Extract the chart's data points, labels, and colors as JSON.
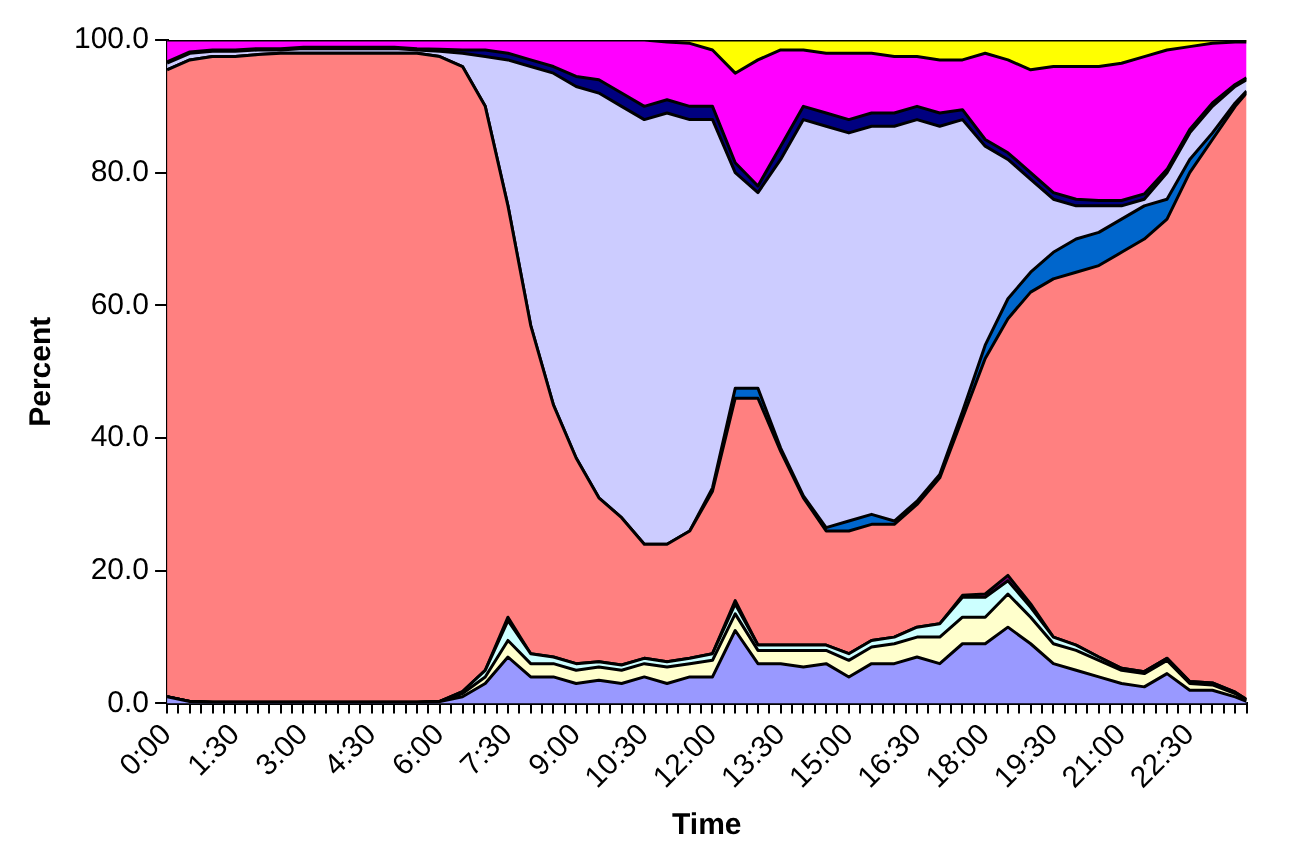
{
  "chart_data": {
    "type": "area",
    "stacked": true,
    "xlabel": "Time",
    "ylabel": "Percent",
    "grid": false,
    "legend": false,
    "marker": "none",
    "x": [
      0,
      0.5,
      1,
      1.5,
      2,
      2.5,
      3,
      3.5,
      4,
      4.5,
      5,
      5.5,
      6,
      6.5,
      7,
      7.5,
      8,
      8.5,
      9,
      9.5,
      10,
      10.5,
      11,
      11.5,
      12,
      12.5,
      13,
      13.5,
      14,
      14.5,
      15,
      15.5,
      16,
      16.5,
      17,
      17.5,
      18,
      18.5,
      19,
      19.5,
      20,
      20.5,
      21,
      21.5,
      22,
      22.5,
      23,
      23.5,
      23.75
    ],
    "xlim": [
      0,
      23.75
    ],
    "xticks": [
      {
        "value": 0,
        "label": "0:00"
      },
      {
        "value": 0.25,
        "label": null
      },
      {
        "value": 0.5,
        "label": null
      },
      {
        "value": 0.75,
        "label": null
      },
      {
        "value": 1,
        "label": null
      },
      {
        "value": 1.25,
        "label": null
      },
      {
        "value": 1.5,
        "label": "1:30"
      },
      {
        "value": 1.75,
        "label": null
      },
      {
        "value": 2,
        "label": null
      },
      {
        "value": 2.25,
        "label": null
      },
      {
        "value": 2.5,
        "label": null
      },
      {
        "value": 2.75,
        "label": null
      },
      {
        "value": 3,
        "label": "3:00"
      },
      {
        "value": 3.25,
        "label": null
      },
      {
        "value": 3.5,
        "label": null
      },
      {
        "value": 3.75,
        "label": null
      },
      {
        "value": 4,
        "label": null
      },
      {
        "value": 4.25,
        "label": null
      },
      {
        "value": 4.5,
        "label": "4:30"
      },
      {
        "value": 4.75,
        "label": null
      },
      {
        "value": 5,
        "label": null
      },
      {
        "value": 5.25,
        "label": null
      },
      {
        "value": 5.5,
        "label": null
      },
      {
        "value": 5.75,
        "label": null
      },
      {
        "value": 6,
        "label": "6:00"
      },
      {
        "value": 6.25,
        "label": null
      },
      {
        "value": 6.5,
        "label": null
      },
      {
        "value": 6.75,
        "label": null
      },
      {
        "value": 7,
        "label": null
      },
      {
        "value": 7.25,
        "label": null
      },
      {
        "value": 7.5,
        "label": "7:30"
      },
      {
        "value": 7.75,
        "label": null
      },
      {
        "value": 8,
        "label": null
      },
      {
        "value": 8.25,
        "label": null
      },
      {
        "value": 8.5,
        "label": null
      },
      {
        "value": 8.75,
        "label": null
      },
      {
        "value": 9,
        "label": "9:00"
      },
      {
        "value": 9.25,
        "label": null
      },
      {
        "value": 9.5,
        "label": null
      },
      {
        "value": 9.75,
        "label": null
      },
      {
        "value": 10,
        "label": null
      },
      {
        "value": 10.25,
        "label": null
      },
      {
        "value": 10.5,
        "label": "10:30"
      },
      {
        "value": 10.75,
        "label": null
      },
      {
        "value": 11,
        "label": null
      },
      {
        "value": 11.25,
        "label": null
      },
      {
        "value": 11.5,
        "label": null
      },
      {
        "value": 11.75,
        "label": null
      },
      {
        "value": 12,
        "label": "12:00"
      },
      {
        "value": 12.25,
        "label": null
      },
      {
        "value": 12.5,
        "label": null
      },
      {
        "value": 12.75,
        "label": null
      },
      {
        "value": 13,
        "label": null
      },
      {
        "value": 13.25,
        "label": null
      },
      {
        "value": 13.5,
        "label": "13:30"
      },
      {
        "value": 13.75,
        "label": null
      },
      {
        "value": 14,
        "label": null
      },
      {
        "value": 14.25,
        "label": null
      },
      {
        "value": 14.5,
        "label": null
      },
      {
        "value": 14.75,
        "label": null
      },
      {
        "value": 15,
        "label": "15:00"
      },
      {
        "value": 15.25,
        "label": null
      },
      {
        "value": 15.5,
        "label": null
      },
      {
        "value": 15.75,
        "label": null
      },
      {
        "value": 16,
        "label": null
      },
      {
        "value": 16.25,
        "label": null
      },
      {
        "value": 16.5,
        "label": "16:30"
      },
      {
        "value": 16.75,
        "label": null
      },
      {
        "value": 17,
        "label": null
      },
      {
        "value": 17.25,
        "label": null
      },
      {
        "value": 17.5,
        "label": null
      },
      {
        "value": 17.75,
        "label": null
      },
      {
        "value": 18,
        "label": "18:00"
      },
      {
        "value": 18.25,
        "label": null
      },
      {
        "value": 18.5,
        "label": null
      },
      {
        "value": 18.75,
        "label": null
      },
      {
        "value": 19,
        "label": null
      },
      {
        "value": 19.25,
        "label": null
      },
      {
        "value": 19.5,
        "label": "19:30"
      },
      {
        "value": 19.75,
        "label": null
      },
      {
        "value": 20,
        "label": null
      },
      {
        "value": 20.25,
        "label": null
      },
      {
        "value": 20.5,
        "label": null
      },
      {
        "value": 20.75,
        "label": null
      },
      {
        "value": 21,
        "label": "21:00"
      },
      {
        "value": 21.25,
        "label": null
      },
      {
        "value": 21.5,
        "label": null
      },
      {
        "value": 21.75,
        "label": null
      },
      {
        "value": 22,
        "label": null
      },
      {
        "value": 22.25,
        "label": null
      },
      {
        "value": 22.5,
        "label": "22:30"
      },
      {
        "value": 22.75,
        "label": null
      },
      {
        "value": 23,
        "label": null
      },
      {
        "value": 23.25,
        "label": null
      },
      {
        "value": 23.5,
        "label": null
      },
      {
        "value": 23.75,
        "label": null
      }
    ],
    "ylim": [
      0,
      100
    ],
    "yticks": [
      {
        "value": 0,
        "label": "0.0"
      },
      {
        "value": 20,
        "label": "20.0"
      },
      {
        "value": 40,
        "label": "40.0"
      },
      {
        "value": 60,
        "label": "60.0"
      },
      {
        "value": 80,
        "label": "80.0"
      },
      {
        "value": 100,
        "label": "100.0"
      }
    ],
    "series": [
      {
        "color": "#9999ff",
        "values": [
          1,
          0.3,
          0.2,
          0.2,
          0.2,
          0.2,
          0.2,
          0.2,
          0.2,
          0.2,
          0.2,
          0.2,
          0.3,
          1,
          3,
          7,
          4,
          4,
          3,
          3.5,
          3,
          4,
          3,
          4,
          4,
          11,
          6,
          6,
          5.5,
          6,
          4,
          6,
          6,
          7,
          6,
          9,
          9,
          11.5,
          9,
          6,
          5,
          4,
          3,
          2.5,
          4.5,
          2,
          2,
          1,
          0.3
        ]
      },
      {
        "color": "#ffffcc",
        "values": [
          0,
          0,
          0,
          0,
          0,
          0,
          0,
          0,
          0,
          0,
          0,
          0,
          0,
          0.5,
          1,
          2.5,
          2,
          2,
          2,
          2,
          2,
          2,
          2.5,
          2,
          2.5,
          2.5,
          2,
          2,
          2.5,
          2,
          2.5,
          2.5,
          3,
          3,
          4,
          4,
          4,
          5,
          4,
          3,
          3,
          2.5,
          2,
          2,
          2,
          1,
          0.8,
          0.5,
          0.2
        ]
      },
      {
        "color": "#ccffff",
        "values": [
          0,
          0,
          0,
          0,
          0,
          0,
          0,
          0,
          0,
          0,
          0,
          0,
          0,
          0.3,
          1,
          3,
          1.5,
          1,
          1,
          0.8,
          0.8,
          0.8,
          0.8,
          0.8,
          1,
          1.5,
          0.8,
          0.8,
          0.8,
          0.8,
          1,
          1,
          1,
          1.5,
          2,
          3,
          3,
          2,
          1.5,
          1,
          0.8,
          0.5,
          0.3,
          0.3,
          0.3,
          0.3,
          0.3,
          0.2,
          0.1
        ]
      },
      {
        "color": "#800080",
        "values": [
          0,
          0,
          0,
          0,
          0,
          0,
          0,
          0,
          0,
          0,
          0,
          0,
          0,
          0,
          0,
          0.5,
          0,
          0,
          0,
          0,
          0,
          0,
          0,
          0,
          0,
          0.5,
          0,
          0,
          0,
          0,
          0,
          0,
          0,
          0,
          0,
          0.3,
          0.5,
          0.8,
          0.5,
          0,
          0,
          0,
          0,
          0,
          0,
          0,
          0,
          0,
          0
        ]
      },
      {
        "color": "#ff8080",
        "values": [
          94.5,
          96.7,
          97.3,
          97.3,
          97.6,
          97.8,
          97.8,
          97.8,
          97.8,
          97.8,
          97.8,
          97.8,
          97.2,
          94.2,
          85,
          62,
          49.5,
          38,
          31,
          24.7,
          22.2,
          17.2,
          17.7,
          19.2,
          24.5,
          30.5,
          37.2,
          29.2,
          22.2,
          17.2,
          18.5,
          17.5,
          17,
          18.5,
          22,
          26.7,
          35.5,
          38.7,
          47,
          54,
          56.2,
          59,
          62.7,
          65.2,
          66.2,
          76.7,
          81.9,
          88.3,
          91.4
        ]
      },
      {
        "color": "#0066cc",
        "values": [
          0,
          0,
          0,
          0,
          0,
          0,
          0,
          0,
          0,
          0,
          0,
          0,
          0,
          0,
          0,
          0,
          0,
          0,
          0,
          0,
          0,
          0,
          0,
          0,
          0.5,
          1.5,
          1.5,
          0.5,
          0.3,
          0.5,
          1.5,
          1.5,
          0.5,
          0.5,
          0.5,
          1,
          2,
          3,
          3,
          4,
          5,
          5,
          5,
          5,
          3,
          2,
          1,
          0.5,
          0.3
        ]
      },
      {
        "color": "#ccccff",
        "values": [
          1,
          1,
          0.8,
          0.8,
          0.7,
          0.5,
          0.7,
          0.7,
          0.7,
          0.7,
          0.7,
          0.5,
          0.8,
          2,
          7.5,
          22,
          39,
          50,
          56,
          61,
          62,
          64,
          65,
          62,
          55.5,
          32.5,
          29.5,
          43.5,
          56.7,
          60.5,
          58.5,
          58.5,
          59.5,
          57.5,
          52.5,
          44,
          30,
          21,
          14,
          8,
          5,
          4,
          2,
          1,
          4,
          4,
          4,
          2.5,
          1.7
        ]
      },
      {
        "color": "#000080",
        "values": [
          0.2,
          0.2,
          0.2,
          0.2,
          0.2,
          0.2,
          0.2,
          0.2,
          0.2,
          0.2,
          0.2,
          0.2,
          0.3,
          0.5,
          1,
          1,
          1,
          1,
          1.5,
          2,
          2,
          2,
          2,
          2,
          2,
          1.5,
          1,
          2,
          2,
          2,
          2,
          2,
          2,
          2,
          2,
          1.5,
          1,
          1,
          1,
          1,
          1,
          0.8,
          0.8,
          0.8,
          0.5,
          0.5,
          0.5,
          0.3,
          0.3
        ]
      },
      {
        "color": "#ff00ff",
        "values": [
          3.3,
          1.8,
          1.5,
          1.5,
          1.3,
          1.3,
          1.1,
          1.1,
          1.1,
          1.1,
          1.1,
          1.3,
          1.4,
          1.5,
          1.5,
          2,
          3,
          4,
          5.5,
          6,
          8,
          10,
          8.7,
          9.5,
          8.5,
          13.5,
          19,
          14.5,
          8.5,
          9,
          10,
          9,
          8.5,
          7.5,
          8,
          7.5,
          13,
          14,
          15.5,
          19,
          20,
          20.2,
          20.7,
          20.7,
          18,
          12.5,
          9,
          6.4,
          5.4
        ]
      },
      {
        "color": "#ffff00",
        "values": [
          0,
          0,
          0,
          0,
          0,
          0,
          0,
          0,
          0,
          0,
          0,
          0,
          0,
          0,
          0,
          0,
          0,
          0,
          0,
          0,
          0,
          0,
          0.3,
          0.5,
          1.5,
          5,
          3,
          1.5,
          1.5,
          2,
          2,
          2,
          2.5,
          2.5,
          3,
          3,
          2,
          3,
          4.5,
          4,
          4,
          4,
          3.5,
          2.5,
          1.5,
          1,
          0.5,
          0.3,
          0.3
        ]
      }
    ]
  }
}
